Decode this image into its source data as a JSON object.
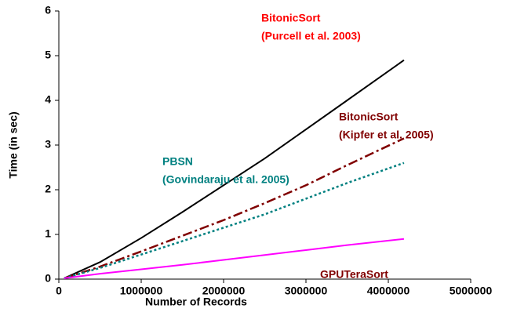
{
  "chart_data": {
    "type": "line",
    "x_label": "Number of Records",
    "y_label": "Time (in sec)",
    "x": [
      65000,
      500000,
      1000000,
      1500000,
      2000000,
      2500000,
      3000000,
      3500000,
      4190000
    ],
    "series": [
      {
        "name": "BitonicSort",
        "citation": "(Purcell et al. 2003)",
        "color": "#000000",
        "label_color": "#ff0000",
        "dash": "solid",
        "values": [
          0.02,
          0.38,
          0.92,
          1.5,
          2.1,
          2.7,
          3.35,
          4.0,
          4.9
        ]
      },
      {
        "name": "BitonicSort",
        "citation": "(Kipfer et al. 2005)",
        "color": "#800000",
        "label_color": "#800000",
        "dash": "dashdot",
        "values": [
          0.02,
          0.28,
          0.62,
          0.97,
          1.32,
          1.7,
          2.1,
          2.55,
          3.15
        ]
      },
      {
        "name": "PBSN",
        "citation": "(Govindaraju et al. 2005)",
        "color": "#008080",
        "label_color": "#008080",
        "dash": "dotted",
        "values": [
          0.02,
          0.25,
          0.55,
          0.85,
          1.15,
          1.45,
          1.8,
          2.15,
          2.6
        ]
      },
      {
        "name": "GPUTeraSort",
        "color": "#ff00ff",
        "label_color": "#800000",
        "dash": "solid",
        "values": [
          0.02,
          0.12,
          0.22,
          0.32,
          0.43,
          0.54,
          0.65,
          0.76,
          0.9
        ]
      }
    ],
    "xlim": [
      0,
      5000000
    ],
    "xticks": [
      0,
      1000000,
      2000000,
      3000000,
      4000000,
      5000000
    ],
    "ylim": [
      0,
      6
    ],
    "yticks": [
      0,
      1,
      2,
      3,
      4,
      5,
      6
    ],
    "grid": false
  }
}
